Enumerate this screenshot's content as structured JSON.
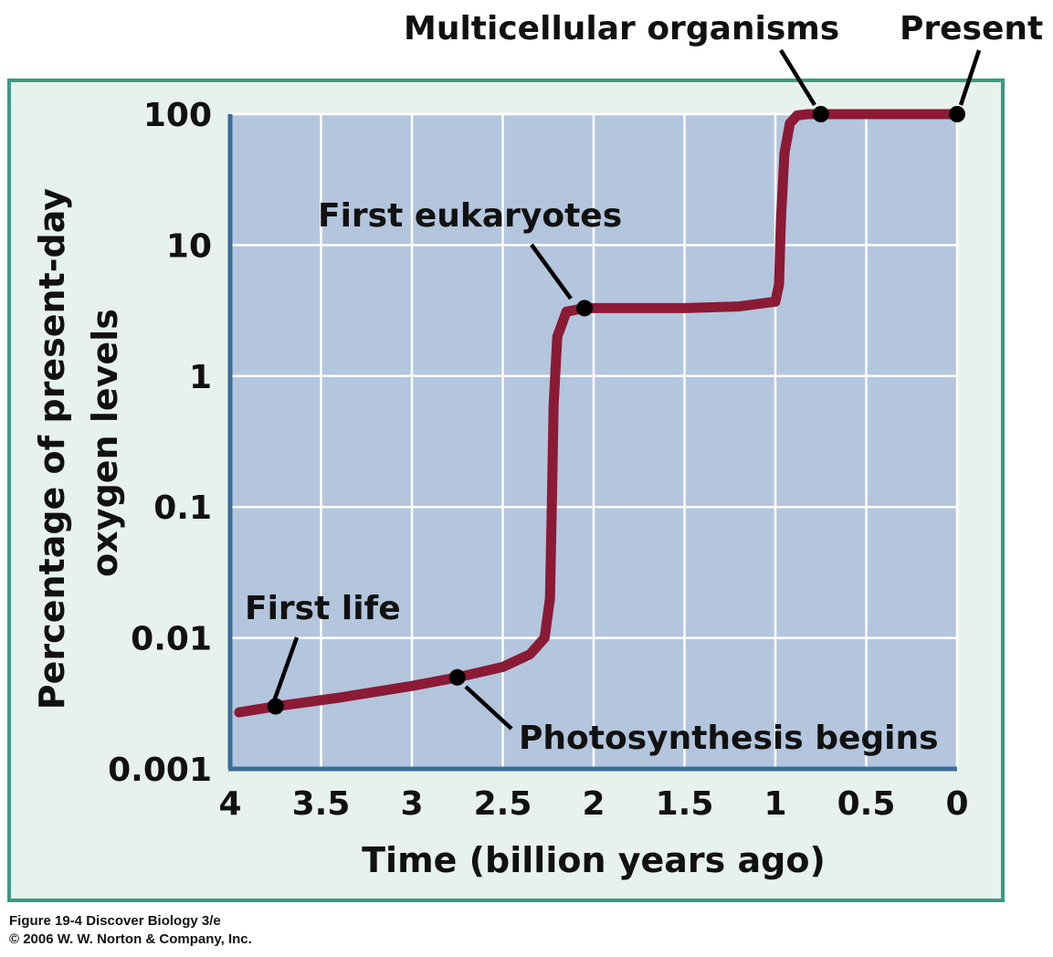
{
  "chart_data": {
    "type": "line",
    "title": "",
    "xlabel": "Time (billion years ago)",
    "ylabel_lines": [
      "Percentage of present-day",
      "oxygen levels"
    ],
    "y_scale": "log",
    "xlim": [
      4,
      0
    ],
    "ylim": [
      0.001,
      100
    ],
    "x_ticks": [
      4,
      3.5,
      3,
      2.5,
      2,
      1.5,
      1,
      0.5,
      0
    ],
    "x_tick_labels": [
      "4",
      "3.5",
      "3",
      "2.5",
      "2",
      "1.5",
      "1",
      "0.5",
      "0"
    ],
    "y_ticks": [
      0.001,
      0.01,
      0.1,
      1,
      10,
      100
    ],
    "y_tick_labels": [
      "0.001",
      "0.01",
      "0.1",
      "1",
      "10",
      "100"
    ],
    "grid": true,
    "series": [
      {
        "color": "#8b1a35",
        "x": [
          3.95,
          3.75,
          3.4,
          3.0,
          2.75,
          2.5,
          2.35,
          2.27,
          2.24,
          2.23,
          2.22,
          2.2,
          2.15,
          2.05,
          1.8,
          1.5,
          1.2,
          1.0,
          0.98,
          0.97,
          0.95,
          0.92,
          0.88,
          0.82,
          0.75,
          0.5,
          0.2,
          0.0
        ],
        "y": [
          0.0027,
          0.003,
          0.0035,
          0.0043,
          0.005,
          0.006,
          0.0075,
          0.01,
          0.02,
          0.1,
          0.6,
          2.0,
          3.1,
          3.3,
          3.3,
          3.3,
          3.4,
          3.7,
          5.0,
          15,
          50,
          85,
          98,
          100,
          100,
          100,
          100,
          100
        ]
      }
    ],
    "events": [
      {
        "label": "First life",
        "x": 3.75,
        "y": 0.003
      },
      {
        "label": "Photosynthesis begins",
        "x": 2.75,
        "y": 0.005
      },
      {
        "label": "First eukaryotes",
        "x": 2.05,
        "y": 3.3
      },
      {
        "label": "Multicellular organisms",
        "x": 0.75,
        "y": 100
      },
      {
        "label": "Present",
        "x": 0.0,
        "y": 100
      }
    ],
    "colors": {
      "frame_border": "#3b9a83",
      "frame_fill": "#e8f2ec",
      "plot_fill": "#b3c6dd",
      "axis_line": "#3d6c96",
      "grid": "#ffffff",
      "curve": "#8b1a35",
      "marker": "#000000"
    }
  },
  "caption": {
    "line1": "Figure 19-4  Discover Biology 3/e",
    "line2": "© 2006 W. W. Norton & Company, Inc."
  }
}
